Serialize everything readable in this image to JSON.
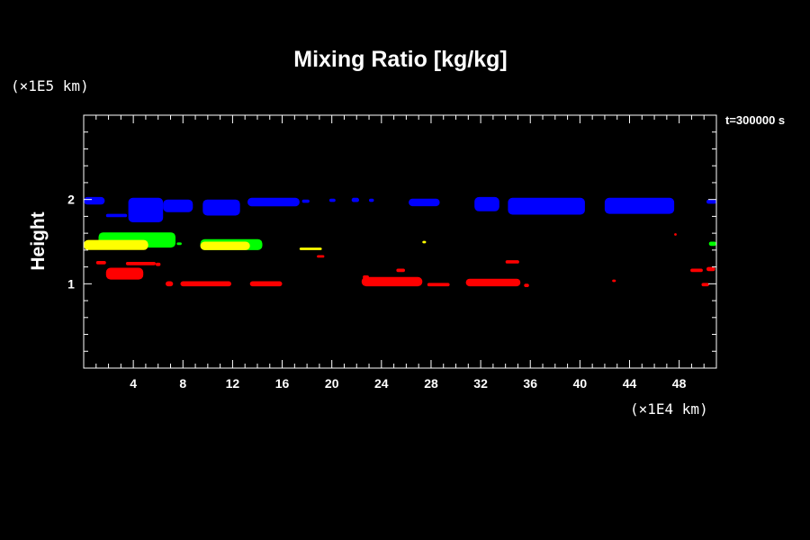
{
  "chart_data": {
    "type": "heatmap",
    "title": "Mixing Ratio [kg/kg]",
    "ylabel": "Height",
    "x_unit_label": "(×1E4 km)",
    "y_unit_label": "(×1E5 km)",
    "time_label": "t=300000 s",
    "xlim": [
      0,
      51
    ],
    "ylim": [
      0,
      3
    ],
    "x_ticks": [
      4,
      8,
      12,
      16,
      20,
      24,
      28,
      32,
      36,
      40,
      44,
      48
    ],
    "y_ticks": [
      1,
      2
    ],
    "grid": false,
    "series": [
      {
        "color": "#0000ff",
        "regions": [
          {
            "x": [
              0,
              1.7
            ],
            "y": [
              1.94,
              2.03
            ]
          },
          {
            "x": [
              1.8,
              3.5
            ],
            "y": [
              1.79,
              1.83
            ]
          },
          {
            "x": [
              3.6,
              6.4
            ],
            "y": [
              1.73,
              2.02
            ]
          },
          {
            "x": [
              6.4,
              8.8
            ],
            "y": [
              1.85,
              2.0
            ]
          },
          {
            "x": [
              9.6,
              12.6
            ],
            "y": [
              1.81,
              2.0
            ]
          },
          {
            "x": [
              13.2,
              17.4
            ],
            "y": [
              1.92,
              2.02
            ]
          },
          {
            "x": [
              17.6,
              18.2
            ],
            "y": [
              1.96,
              2.0
            ]
          },
          {
            "x": [
              19.8,
              20.3
            ],
            "y": [
              1.97,
              2.01
            ]
          },
          {
            "x": [
              21.6,
              22.2
            ],
            "y": [
              1.97,
              2.02
            ]
          },
          {
            "x": [
              23.0,
              23.4
            ],
            "y": [
              1.97,
              2.01
            ]
          },
          {
            "x": [
              26.2,
              28.7
            ],
            "y": [
              1.92,
              2.01
            ]
          },
          {
            "x": [
              31.5,
              33.5
            ],
            "y": [
              1.86,
              2.03
            ]
          },
          {
            "x": [
              34.2,
              40.4
            ],
            "y": [
              1.82,
              2.02
            ]
          },
          {
            "x": [
              42.0,
              47.6
            ],
            "y": [
              1.83,
              2.02
            ]
          },
          {
            "x": [
              50.2,
              51
            ],
            "y": [
              1.95,
              2.0
            ]
          }
        ]
      },
      {
        "color": "#00ff00",
        "regions": [
          {
            "x": [
              1.2,
              7.4
            ],
            "y": [
              1.43,
              1.61
            ]
          },
          {
            "x": [
              7.5,
              7.9
            ],
            "y": [
              1.46,
              1.49
            ]
          },
          {
            "x": [
              9.4,
              14.4
            ],
            "y": [
              1.4,
              1.53
            ]
          },
          {
            "x": [
              50.4,
              51
            ],
            "y": [
              1.45,
              1.5
            ]
          }
        ]
      },
      {
        "color": "#ffff00",
        "regions": [
          {
            "x": [
              0,
              5.2
            ],
            "y": [
              1.4,
              1.52
            ]
          },
          {
            "x": [
              9.4,
              13.4
            ],
            "y": [
              1.4,
              1.5
            ]
          },
          {
            "x": [
              17.4,
              19.2
            ],
            "y": [
              1.4,
              1.43
            ]
          },
          {
            "x": [
              27.3,
              27.6
            ],
            "y": [
              1.48,
              1.51
            ]
          }
        ]
      },
      {
        "color": "#ff0000",
        "regions": [
          {
            "x": [
              1.0,
              1.8
            ],
            "y": [
              1.23,
              1.27
            ]
          },
          {
            "x": [
              1.8,
              4.8
            ],
            "y": [
              1.05,
              1.19
            ]
          },
          {
            "x": [
              3.4,
              5.8
            ],
            "y": [
              1.22,
              1.26
            ]
          },
          {
            "x": [
              5.8,
              6.2
            ],
            "y": [
              1.21,
              1.25
            ]
          },
          {
            "x": [
              6.6,
              7.2
            ],
            "y": [
              0.97,
              1.03
            ]
          },
          {
            "x": [
              7.8,
              11.9
            ],
            "y": [
              0.97,
              1.03
            ]
          },
          {
            "x": [
              13.4,
              16.0
            ],
            "y": [
              0.97,
              1.03
            ]
          },
          {
            "x": [
              18.8,
              19.4
            ],
            "y": [
              1.31,
              1.34
            ]
          },
          {
            "x": [
              22.5,
              23.0
            ],
            "y": [
              1.06,
              1.1
            ]
          },
          {
            "x": [
              22.4,
              27.3
            ],
            "y": [
              0.97,
              1.08
            ]
          },
          {
            "x": [
              25.2,
              25.9
            ],
            "y": [
              1.14,
              1.18
            ]
          },
          {
            "x": [
              27.7,
              29.5
            ],
            "y": [
              0.97,
              1.01
            ]
          },
          {
            "x": [
              30.8,
              35.2
            ],
            "y": [
              0.97,
              1.06
            ]
          },
          {
            "x": [
              35.5,
              35.9
            ],
            "y": [
              0.96,
              1.0
            ]
          },
          {
            "x": [
              34.0,
              35.1
            ],
            "y": [
              1.24,
              1.28
            ]
          },
          {
            "x": [
              42.6,
              42.9
            ],
            "y": [
              1.02,
              1.05
            ]
          },
          {
            "x": [
              47.6,
              47.8
            ],
            "y": [
              1.57,
              1.6
            ]
          },
          {
            "x": [
              48.9,
              49.9
            ],
            "y": [
              1.14,
              1.18
            ]
          },
          {
            "x": [
              49.8,
              50.4
            ],
            "y": [
              0.97,
              1.01
            ]
          },
          {
            "x": [
              50.2,
              50.9
            ],
            "y": [
              1.15,
              1.2
            ]
          }
        ]
      }
    ]
  }
}
